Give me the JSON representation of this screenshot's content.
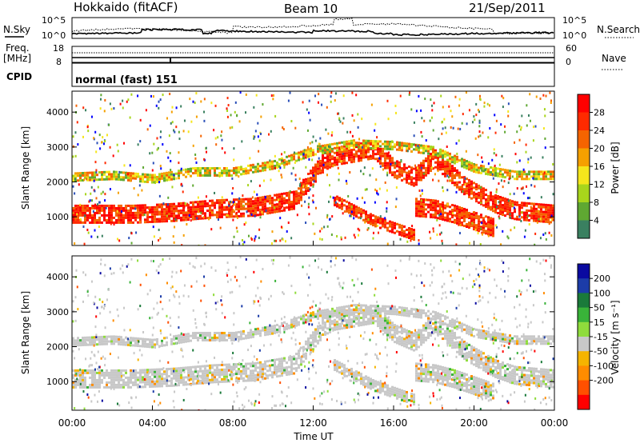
{
  "header": {
    "station": "Hokkaido (fitACF)",
    "beam": "Beam 10",
    "date": "21/Sep/2011"
  },
  "noise_panel": {
    "left_label": "N.Sky",
    "right_label": "N.Search",
    "left_ticks": [
      "10^5",
      "10^0"
    ],
    "right_ticks": [
      "10^5",
      "10^0"
    ]
  },
  "freq_panel": {
    "left_label_1": "Freq.",
    "left_label_2": "[MHz]",
    "right_label": "Nave",
    "left_ticks": [
      "18",
      "8"
    ],
    "right_ticks": [
      "60",
      "0"
    ]
  },
  "cpid_panel": {
    "label": "CPID",
    "text": "normal (fast) 151"
  },
  "colors": {
    "scale_power": [
      "#0000ff",
      "#2a4fb8",
      "#3a8060",
      "#5fa832",
      "#a8d51c",
      "#f5e61c",
      "#f5a000",
      "#f56400",
      "#ff2a00",
      "#ff0000"
    ],
    "scale_velocity": [
      "#0a0aa0",
      "#1c3ca8",
      "#1a7a3a",
      "#39b339",
      "#8fdc3c",
      "#c8c8c8",
      "#f5b400",
      "#ff8c00",
      "#ff5000",
      "#ff0000"
    ]
  },
  "chart_data": [
    {
      "type": "heatmap",
      "name": "power",
      "xlabel": "",
      "ylabel": "Slant Range [km]",
      "xlim_hours": [
        0,
        24
      ],
      "ylim_km": [
        180,
        4600
      ],
      "yticks": [
        1000,
        2000,
        3000,
        4000
      ],
      "colorbar": {
        "label": "Power [dB]",
        "ticks": [
          "28",
          "24",
          "20",
          "16",
          "12",
          "8",
          "4"
        ]
      },
      "echo_bands": [
        {
          "range_km_by_hour": [
            [
              0,
              1100
            ],
            [
              3,
              1100
            ],
            [
              5,
              1150
            ],
            [
              7,
              1250
            ],
            [
              9,
              1300
            ],
            [
              11,
              1500
            ],
            [
              12.5,
              2600
            ],
            [
              13,
              2750
            ],
            [
              14,
              2850
            ],
            [
              15,
              2950
            ],
            [
              16,
              2400
            ],
            [
              17,
              2150
            ],
            [
              18,
              2700
            ],
            [
              19.5,
              1900
            ],
            [
              21,
              1400
            ],
            [
              22,
              1200
            ],
            [
              24,
              1100
            ]
          ],
          "width_km": 500,
          "level": "high"
        },
        {
          "range_km_by_hour": [
            [
              0,
              2150
            ],
            [
              2,
              2200
            ],
            [
              4,
              2100
            ],
            [
              6,
              2300
            ],
            [
              8,
              2300
            ],
            [
              10,
              2500
            ],
            [
              12,
              2900
            ],
            [
              14,
              3100
            ],
            [
              16,
              3050
            ],
            [
              18,
              2900
            ],
            [
              20,
              2400
            ],
            [
              22,
              2200
            ],
            [
              24,
              2200
            ]
          ],
          "width_km": 250,
          "level": "medium"
        },
        {
          "range_km_by_hour": [
            [
              13,
              1500
            ],
            [
              14,
              1200
            ],
            [
              15,
              900
            ],
            [
              16,
              700
            ],
            [
              17,
              500
            ]
          ],
          "width_km": 300,
          "level": "high"
        },
        {
          "range_km_by_hour": [
            [
              17,
              1300
            ],
            [
              18,
              1250
            ],
            [
              19,
              1100
            ],
            [
              20,
              900
            ],
            [
              21,
              700
            ]
          ],
          "width_km": 500,
          "level": "high"
        }
      ]
    },
    {
      "type": "heatmap",
      "name": "velocity",
      "xlabel": "Time UT",
      "ylabel": "Slant Range [km]",
      "xticks": [
        "00:00",
        "04:00",
        "08:00",
        "12:00",
        "16:00",
        "20:00",
        "00:00"
      ],
      "xlim_hours": [
        0,
        24
      ],
      "ylim_km": [
        180,
        4600
      ],
      "yticks": [
        1000,
        2000,
        3000,
        4000
      ],
      "colorbar": {
        "label": "Velocity [m s⁻¹]",
        "ticks": [
          "200",
          "100",
          "50",
          "15",
          "-15",
          "-50",
          "-100",
          "-200"
        ]
      },
      "echo_bands": [
        {
          "range_km_by_hour": [
            [
              0,
              1100
            ],
            [
              3,
              1100
            ],
            [
              5,
              1150
            ],
            [
              7,
              1250
            ],
            [
              9,
              1300
            ],
            [
              11,
              1500
            ],
            [
              12.5,
              2600
            ],
            [
              13,
              2750
            ],
            [
              14,
              2850
            ],
            [
              15,
              2950
            ],
            [
              16,
              2400
            ],
            [
              17,
              2150
            ],
            [
              18,
              2700
            ],
            [
              19.5,
              1900
            ],
            [
              21,
              1400
            ],
            [
              22,
              1200
            ],
            [
              24,
              1100
            ]
          ],
          "width_km": 500,
          "level": "near-zero"
        },
        {
          "range_km_by_hour": [
            [
              0,
              2150
            ],
            [
              2,
              2200
            ],
            [
              4,
              2100
            ],
            [
              6,
              2300
            ],
            [
              8,
              2300
            ],
            [
              10,
              2500
            ],
            [
              12,
              2900
            ],
            [
              14,
              3100
            ],
            [
              16,
              3050
            ],
            [
              18,
              2900
            ],
            [
              20,
              2400
            ],
            [
              22,
              2200
            ],
            [
              24,
              2200
            ]
          ],
          "width_km": 250,
          "level": "near-zero"
        }
      ]
    }
  ]
}
